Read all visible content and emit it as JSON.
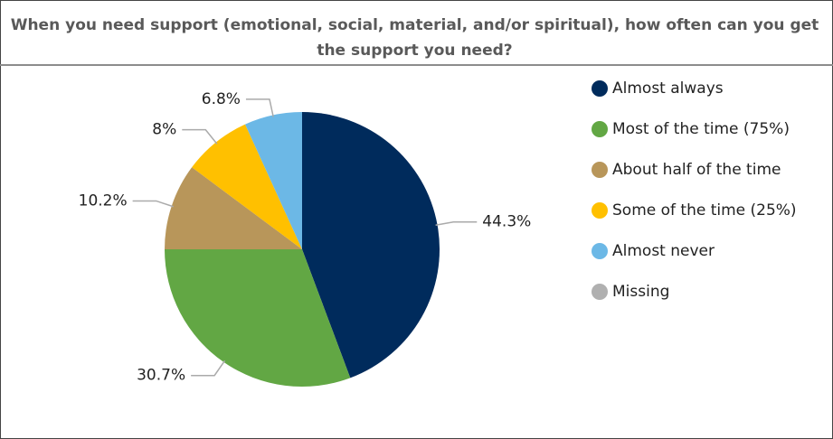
{
  "chart_data": {
    "type": "pie",
    "title": "When you need support (emotional, social, material, and/or spiritual), how often can you get the support you need?",
    "categories": [
      "Almost always",
      "Most of the time (75%)",
      "About half of the time",
      "Some of the time (25%)",
      "Almost never",
      "Missing"
    ],
    "values": [
      44.3,
      30.7,
      10.2,
      8,
      6.8,
      0
    ],
    "value_labels": [
      "44.3%",
      "30.7%",
      "10.2%",
      "8%",
      "6.8%",
      null
    ],
    "colors": [
      "#002b5c",
      "#62a744",
      "#b8965a",
      "#ffc000",
      "#6cb8e6",
      "#b0b0b0"
    ],
    "legend": "right"
  }
}
